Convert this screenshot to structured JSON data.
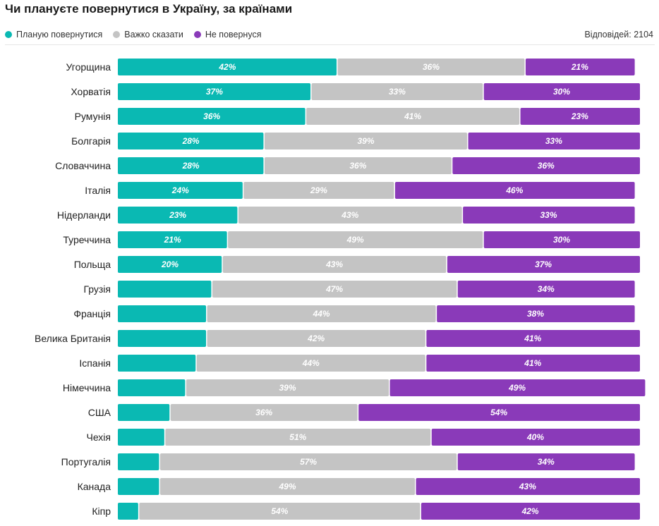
{
  "title": "Чи плануєте повернутися в Україну, за країнами",
  "responses": "Відповідей: 2104",
  "colors": {
    "plan": "#0ab9b3",
    "hard": "#c4c4c4",
    "not": "#8a3ab9"
  },
  "chart_data": {
    "type": "bar",
    "orientation": "horizontal",
    "stacked": true,
    "xlim": [
      0,
      100
    ],
    "title": "Чи плануєте повернутися в Україну, за країнами",
    "legend": "top-left",
    "categories": [
      "Угорщина",
      "Хорватія",
      "Румунія",
      "Болгарія",
      "Словаччина",
      "Італія",
      "Нідерланди",
      "Туреччина",
      "Польща",
      "Грузія",
      "Франція",
      "Велика Британія",
      "Іспанія",
      "Німеччина",
      "США",
      "Чехія",
      "Португалія",
      "Канада",
      "Кіпр"
    ],
    "series": [
      {
        "name": "Планую повернутися",
        "color": "#0ab9b3",
        "values": [
          42,
          37,
          36,
          28,
          28,
          24,
          23,
          21,
          20,
          18,
          17,
          17,
          15,
          13,
          10,
          9,
          8,
          8,
          4
        ],
        "labels": [
          "42%",
          "37%",
          "36%",
          "28%",
          "28%",
          "24%",
          "23%",
          "21%",
          "20%",
          "",
          "",
          "",
          "",
          "",
          "",
          "",
          "",
          "",
          ""
        ]
      },
      {
        "name": "Важко сказати",
        "color": "#c4c4c4",
        "values": [
          36,
          33,
          41,
          39,
          36,
          29,
          43,
          49,
          43,
          47,
          44,
          42,
          44,
          39,
          36,
          51,
          57,
          49,
          54
        ],
        "labels": [
          "36%",
          "33%",
          "41%",
          "39%",
          "36%",
          "29%",
          "43%",
          "49%",
          "43%",
          "47%",
          "44%",
          "42%",
          "44%",
          "39%",
          "36%",
          "51%",
          "57%",
          "49%",
          "54%"
        ]
      },
      {
        "name": "Не повернуся",
        "color": "#8a3ab9",
        "values": [
          21,
          30,
          23,
          33,
          36,
          46,
          33,
          30,
          37,
          34,
          38,
          41,
          41,
          49,
          54,
          40,
          34,
          43,
          42
        ],
        "labels": [
          "21%",
          "30%",
          "23%",
          "33%",
          "36%",
          "46%",
          "33%",
          "30%",
          "37%",
          "34%",
          "38%",
          "41%",
          "41%",
          "49%",
          "54%",
          "40%",
          "34%",
          "43%",
          "42%"
        ]
      }
    ]
  }
}
